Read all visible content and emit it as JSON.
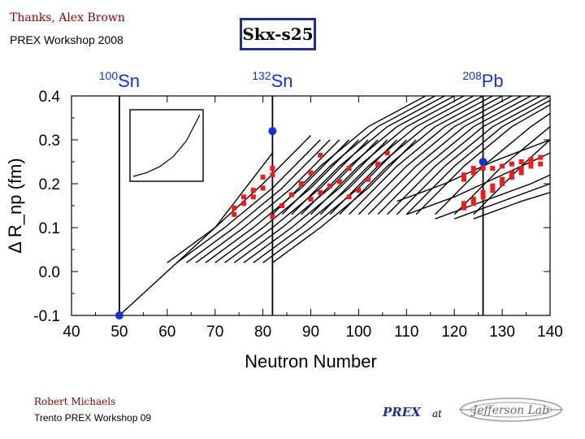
{
  "header": {
    "credit": "Thanks, Alex Brown",
    "workshop": "PREX Workshop 2008",
    "model_label": "Skx-s25"
  },
  "footer": {
    "name": "Robert Michaels",
    "talk": "Trento PREX Workshop 09",
    "prex": "PREX",
    "at": "at",
    "logo_text": "Jefferson Lab"
  },
  "colors": {
    "points_red": "#ee1c1c",
    "points_blue": "#1431d8",
    "curves": "#000000",
    "title_maroon": "#8b0000",
    "box_border": "#1f2f8a"
  },
  "chart_data": {
    "type": "line",
    "xlabel": "Neutron Number",
    "ylabel": "Δ R_np (fm)",
    "xlim": [
      40,
      140
    ],
    "ylim": [
      -0.1,
      0.4
    ],
    "x_ticks": [
      "40",
      "50",
      "60",
      "70",
      "80",
      "90",
      "100",
      "110",
      "120",
      "130",
      "140"
    ],
    "y_ticks": [
      "-0.1",
      "0.0",
      "0.1",
      "0.2",
      "0.3",
      "0.4"
    ],
    "annotations": [
      {
        "mass": "100",
        "element": "Sn",
        "x": 50
      },
      {
        "mass": "132",
        "element": "Sn",
        "x": 82
      },
      {
        "mass": "208",
        "element": "Pb",
        "x": 126
      }
    ],
    "vertical_lines_x": [
      50,
      82,
      126
    ],
    "isotope_chains": [
      {
        "x": [
          50,
          60,
          70,
          82
        ],
        "y": [
          -0.1,
          0.0,
          0.1,
          0.27
        ]
      },
      {
        "x": [
          60,
          70,
          80,
          90
        ],
        "y": [
          0.02,
          0.1,
          0.2,
          0.31
        ]
      },
      {
        "x": [
          62,
          72,
          82,
          92
        ],
        "y": [
          0.02,
          0.1,
          0.19,
          0.3
        ]
      },
      {
        "x": [
          64,
          74,
          84,
          94
        ],
        "y": [
          0.02,
          0.1,
          0.19,
          0.3
        ]
      },
      {
        "x": [
          66,
          76,
          86,
          96
        ],
        "y": [
          0.02,
          0.1,
          0.19,
          0.3
        ]
      },
      {
        "x": [
          68,
          78,
          88,
          98
        ],
        "y": [
          0.02,
          0.1,
          0.19,
          0.3
        ]
      },
      {
        "x": [
          70,
          80,
          90,
          100
        ],
        "y": [
          0.02,
          0.1,
          0.19,
          0.3
        ]
      },
      {
        "x": [
          72,
          82,
          92,
          102
        ],
        "y": [
          0.02,
          0.1,
          0.19,
          0.3
        ]
      },
      {
        "x": [
          74,
          84,
          94,
          104
        ],
        "y": [
          0.02,
          0.1,
          0.19,
          0.3
        ]
      },
      {
        "x": [
          76,
          86,
          96,
          106
        ],
        "y": [
          0.02,
          0.1,
          0.19,
          0.3
        ]
      },
      {
        "x": [
          78,
          88,
          98,
          108
        ],
        "y": [
          0.02,
          0.1,
          0.19,
          0.3
        ]
      },
      {
        "x": [
          80,
          90,
          100,
          110
        ],
        "y": [
          0.02,
          0.1,
          0.19,
          0.3
        ]
      },
      {
        "x": [
          82,
          92,
          102,
          112
        ],
        "y": [
          0.02,
          0.1,
          0.19,
          0.3
        ]
      },
      {
        "x": [
          82,
          92,
          102,
          114
        ],
        "y": [
          0.13,
          0.24,
          0.33,
          0.4
        ]
      },
      {
        "x": [
          84,
          94,
          104,
          116
        ],
        "y": [
          0.13,
          0.24,
          0.33,
          0.4
        ]
      },
      {
        "x": [
          86,
          96,
          106,
          118
        ],
        "y": [
          0.13,
          0.24,
          0.33,
          0.4
        ]
      },
      {
        "x": [
          88,
          98,
          108,
          120
        ],
        "y": [
          0.13,
          0.24,
          0.33,
          0.4
        ]
      },
      {
        "x": [
          90,
          100,
          110,
          122
        ],
        "y": [
          0.13,
          0.24,
          0.33,
          0.4
        ]
      },
      {
        "x": [
          92,
          102,
          112,
          124
        ],
        "y": [
          0.13,
          0.24,
          0.33,
          0.4
        ]
      },
      {
        "x": [
          94,
          104,
          114,
          126
        ],
        "y": [
          0.13,
          0.24,
          0.33,
          0.4
        ]
      },
      {
        "x": [
          96,
          106,
          116,
          128
        ],
        "y": [
          0.13,
          0.24,
          0.33,
          0.4
        ]
      },
      {
        "x": [
          98,
          108,
          118,
          130
        ],
        "y": [
          0.13,
          0.24,
          0.33,
          0.4
        ]
      },
      {
        "x": [
          100,
          110,
          120,
          132
        ],
        "y": [
          0.13,
          0.24,
          0.33,
          0.4
        ]
      },
      {
        "x": [
          102,
          112,
          122,
          134
        ],
        "y": [
          0.13,
          0.24,
          0.33,
          0.4
        ]
      },
      {
        "x": [
          104,
          114,
          124,
          136
        ],
        "y": [
          0.13,
          0.24,
          0.33,
          0.4
        ]
      },
      {
        "x": [
          106,
          116,
          126,
          138
        ],
        "y": [
          0.13,
          0.24,
          0.33,
          0.4
        ]
      },
      {
        "x": [
          108,
          118,
          128,
          140
        ],
        "y": [
          0.13,
          0.24,
          0.33,
          0.4
        ]
      },
      {
        "x": [
          110,
          120,
          130,
          140
        ],
        "y": [
          0.13,
          0.24,
          0.33,
          0.39
        ]
      },
      {
        "x": [
          112,
          122,
          132,
          140
        ],
        "y": [
          0.13,
          0.24,
          0.33,
          0.38
        ]
      },
      {
        "x": [
          116,
          126,
          136,
          140
        ],
        "y": [
          0.13,
          0.24,
          0.33,
          0.36
        ]
      },
      {
        "x": [
          120,
          130,
          140
        ],
        "y": [
          0.13,
          0.24,
          0.33
        ]
      },
      {
        "x": [
          124,
          134,
          140
        ],
        "y": [
          0.13,
          0.24,
          0.3
        ]
      },
      {
        "x": [
          108,
          118,
          128,
          140
        ],
        "y": [
          0.16,
          0.2,
          0.25,
          0.3
        ]
      },
      {
        "x": [
          110,
          120,
          130,
          140
        ],
        "y": [
          0.13,
          0.17,
          0.22,
          0.27
        ]
      },
      {
        "x": [
          116,
          126,
          136,
          140
        ],
        "y": [
          0.12,
          0.16,
          0.2,
          0.22
        ]
      },
      {
        "x": [
          120,
          130,
          140
        ],
        "y": [
          0.12,
          0.16,
          0.2
        ]
      },
      {
        "x": [
          124,
          134,
          140
        ],
        "y": [
          0.12,
          0.16,
          0.18
        ]
      }
    ],
    "red_points": [
      {
        "x": 74,
        "y": 0.13
      },
      {
        "x": 74,
        "y": 0.145
      },
      {
        "x": 76,
        "y": 0.155
      },
      {
        "x": 76,
        "y": 0.17
      },
      {
        "x": 78,
        "y": 0.17
      },
      {
        "x": 78,
        "y": 0.185
      },
      {
        "x": 80,
        "y": 0.19
      },
      {
        "x": 80,
        "y": 0.215
      },
      {
        "x": 82,
        "y": 0.22
      },
      {
        "x": 82,
        "y": 0.235
      },
      {
        "x": 82,
        "y": 0.125
      },
      {
        "x": 84,
        "y": 0.15
      },
      {
        "x": 86,
        "y": 0.175
      },
      {
        "x": 88,
        "y": 0.2
      },
      {
        "x": 90,
        "y": 0.225
      },
      {
        "x": 90,
        "y": 0.165
      },
      {
        "x": 92,
        "y": 0.18
      },
      {
        "x": 92,
        "y": 0.265
      },
      {
        "x": 94,
        "y": 0.195
      },
      {
        "x": 96,
        "y": 0.205
      },
      {
        "x": 98,
        "y": 0.17
      },
      {
        "x": 98,
        "y": 0.235
      },
      {
        "x": 100,
        "y": 0.185
      },
      {
        "x": 102,
        "y": 0.21
      },
      {
        "x": 104,
        "y": 0.245
      },
      {
        "x": 106,
        "y": 0.27
      },
      {
        "x": 122,
        "y": 0.21
      },
      {
        "x": 122,
        "y": 0.22
      },
      {
        "x": 124,
        "y": 0.225
      },
      {
        "x": 124,
        "y": 0.235
      },
      {
        "x": 126,
        "y": 0.235
      },
      {
        "x": 126,
        "y": 0.245
      },
      {
        "x": 128,
        "y": 0.235
      },
      {
        "x": 130,
        "y": 0.24
      },
      {
        "x": 132,
        "y": 0.245
      },
      {
        "x": 134,
        "y": 0.25
      },
      {
        "x": 136,
        "y": 0.255
      },
      {
        "x": 122,
        "y": 0.145
      },
      {
        "x": 122,
        "y": 0.155
      },
      {
        "x": 124,
        "y": 0.155
      },
      {
        "x": 124,
        "y": 0.165
      },
      {
        "x": 126,
        "y": 0.17
      },
      {
        "x": 126,
        "y": 0.18
      },
      {
        "x": 128,
        "y": 0.185
      },
      {
        "x": 128,
        "y": 0.195
      },
      {
        "x": 130,
        "y": 0.2
      },
      {
        "x": 130,
        "y": 0.21
      },
      {
        "x": 132,
        "y": 0.215
      },
      {
        "x": 132,
        "y": 0.225
      },
      {
        "x": 134,
        "y": 0.225
      },
      {
        "x": 134,
        "y": 0.235
      },
      {
        "x": 136,
        "y": 0.24
      },
      {
        "x": 136,
        "y": 0.25
      },
      {
        "x": 138,
        "y": 0.245
      },
      {
        "x": 138,
        "y": 0.26
      }
    ],
    "blue_points": [
      {
        "x": 50,
        "y": -0.1
      },
      {
        "x": 82,
        "y": 0.32
      },
      {
        "x": 126,
        "y": 0.25
      }
    ],
    "inset": {
      "x": [
        0,
        0.2,
        0.4,
        0.6,
        0.8,
        1.0
      ],
      "y": [
        0,
        0.06,
        0.16,
        0.32,
        0.58,
        1.0
      ]
    }
  }
}
